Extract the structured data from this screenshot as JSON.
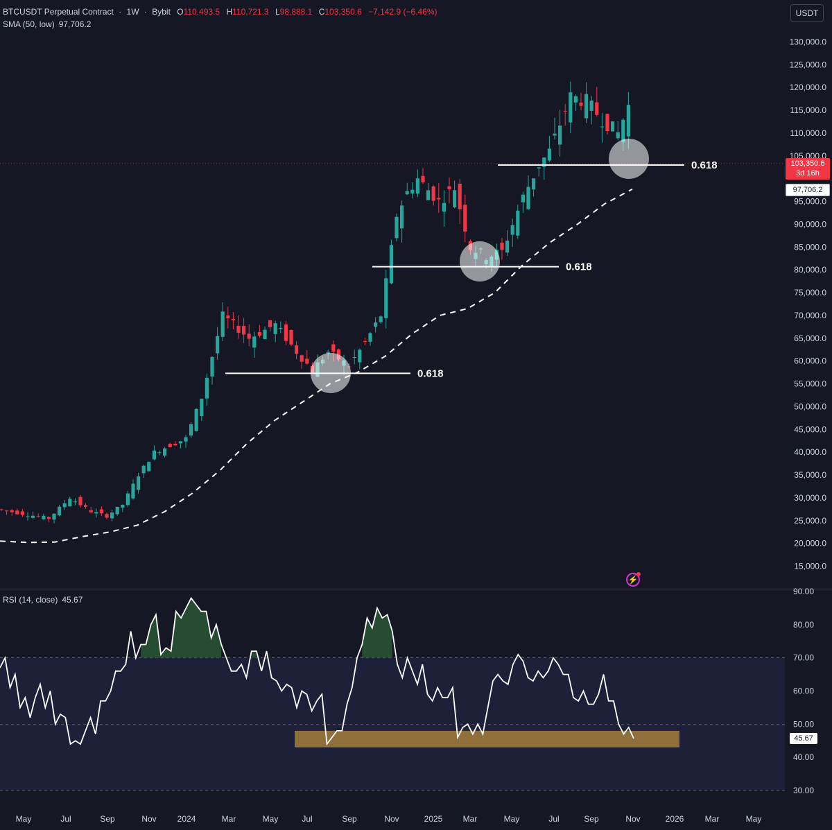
{
  "legend": {
    "symbol": "BTCUSDT Perpetual Contract",
    "interval": "1W",
    "exchange": "Bybit",
    "open_label": "O",
    "open": "110,493.5",
    "high_label": "H",
    "high": "110,721.3",
    "low_label": "L",
    "low": "98,888.1",
    "close_label": "C",
    "close": "103,350.6",
    "change": "−7,142.9 (−6.46%)",
    "sma_label": "SMA (50, low)",
    "sma_value": "97,706.2"
  },
  "currency_button": "USDT",
  "last_price_tag": {
    "price": "103,350.6",
    "countdown": "3d 16h"
  },
  "sma_tag": "97,706.2",
  "rsi_legend": {
    "label": "RSI (14, close)",
    "value": "45.67"
  },
  "rsi_tag": "45.67",
  "colors": {
    "background": "#151824",
    "up": "#26a69a",
    "down": "#f23645",
    "sma": "#ffffff",
    "rsi_line": "#ffffff",
    "rsi_band": "#1e1f38",
    "support_zone": "#8f6f3a",
    "overbought_fill": "#2a5a34"
  },
  "icons": {
    "alert": "flash-icon"
  },
  "fib_label": "0.618",
  "chart_data": [
    {
      "type": "candlestick",
      "title": "BTCUSDT Perpetual Contract · 1W · Bybit",
      "ylim": [
        10000,
        133000
      ],
      "y_ticks": [
        "130,000.0",
        "125,000.0",
        "120,000.0",
        "115,000.0",
        "110,000.0",
        "105,000.0",
        "95,000.0",
        "90,000.0",
        "85,000.0",
        "80,000.0",
        "75,000.0",
        "70,000.0",
        "65,000.0",
        "60,000.0",
        "55,000.0",
        "50,000.0",
        "45,000.0",
        "40,000.0",
        "35,000.0",
        "30,000.0",
        "25,000.0",
        "20,000.0",
        "15,000.0"
      ],
      "x_ticks": [
        "May",
        "Jul",
        "Sep",
        "Nov",
        "2024",
        "Mar",
        "May",
        "Jul",
        "Sep",
        "Nov",
        "2025",
        "Mar",
        "May",
        "Jul",
        "Sep",
        "Nov",
        "2026",
        "Mar",
        "May"
      ],
      "series": [
        {
          "name": "SMA (50, low)",
          "type": "line",
          "style": "dashed",
          "values": [
            20500,
            20200,
            20300,
            21500,
            22500,
            24000,
            27000,
            31000,
            36000,
            42000,
            47000,
            51000,
            55000,
            57500,
            61000,
            66000,
            70000,
            71500,
            75000,
            81000,
            86000,
            90000,
            94500,
            97706
          ]
        },
        {
          "name": "Fib 0.618 levels",
          "type": "hline",
          "values": [
            57300,
            80700,
            103000
          ]
        }
      ],
      "annotations": [
        {
          "text": "0.618",
          "y": 57300
        },
        {
          "text": "0.618",
          "y": 80700
        },
        {
          "text": "0.618",
          "y": 103000
        }
      ]
    },
    {
      "type": "line",
      "title": "RSI (14, close)",
      "ylim": [
        28,
        90
      ],
      "y_ticks": [
        "90.00",
        "80.00",
        "70.00",
        "60.00",
        "50.00",
        "40.00",
        "30.00"
      ],
      "bands": [
        30,
        70
      ],
      "last": 45.67,
      "values": [
        67,
        70,
        61,
        65,
        55,
        58,
        52,
        58,
        62,
        55,
        60,
        50,
        53,
        52,
        44,
        45,
        44,
        48,
        52,
        47,
        57,
        57,
        60,
        66,
        66,
        68,
        78,
        70,
        74,
        74,
        80,
        83,
        71,
        73,
        72,
        84,
        82,
        85,
        88,
        86,
        84,
        84,
        76,
        80,
        74,
        70,
        66,
        66,
        68,
        64,
        72,
        72,
        66,
        72,
        64,
        63,
        60,
        62,
        61,
        55,
        60,
        59,
        54,
        57,
        59,
        44,
        46,
        48,
        48,
        56,
        61,
        70,
        74,
        82,
        79,
        85,
        82,
        83,
        78,
        68,
        64,
        70,
        66,
        62,
        68,
        59,
        57,
        61,
        58,
        58,
        61,
        46,
        49,
        50,
        47,
        50,
        47,
        55,
        63,
        65,
        63,
        62,
        68,
        71,
        69,
        64,
        63,
        66,
        64,
        66,
        70,
        68,
        65,
        65,
        58,
        57,
        60,
        56,
        56,
        59,
        65,
        57,
        57,
        50,
        47,
        49,
        45.67
      ],
      "support_zone": [
        43,
        48
      ]
    }
  ]
}
